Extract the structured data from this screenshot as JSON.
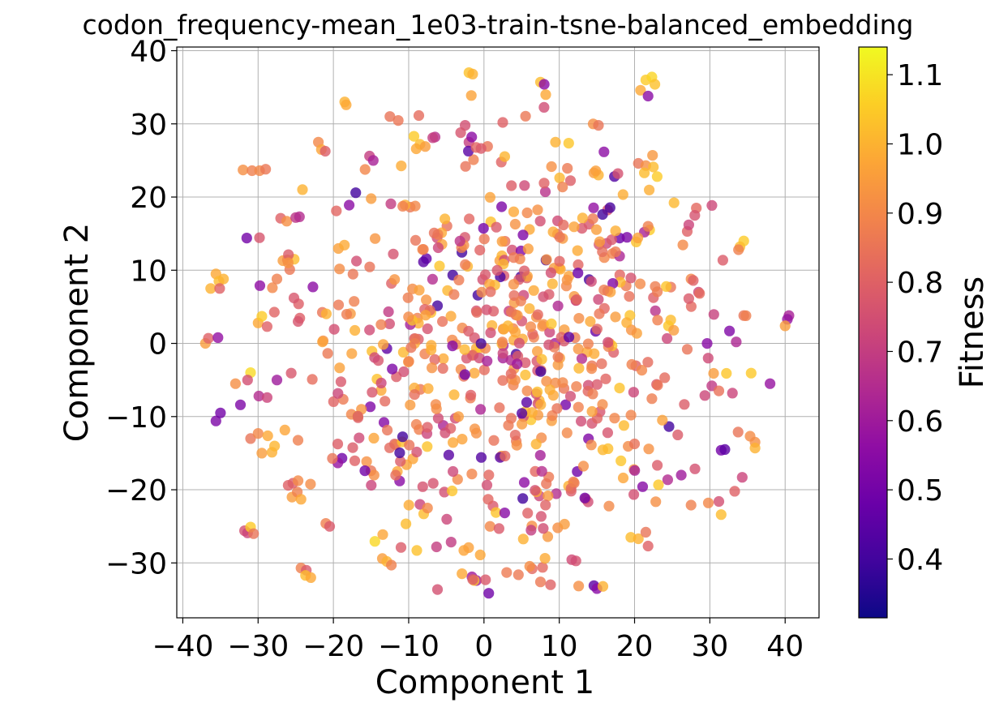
{
  "chart_data": {
    "type": "scatter",
    "title": "codon_frequency-mean_1e03-train-tsne-balanced_embedding",
    "xlabel": "Component 1",
    "ylabel": "Component 2",
    "xlim": [
      -40.8,
      44.5
    ],
    "ylim": [
      -37.5,
      40.5
    ],
    "xticks": [
      -40,
      -30,
      -20,
      -10,
      0,
      10,
      20,
      30,
      40
    ],
    "yticks": [
      -30,
      -20,
      -10,
      0,
      10,
      20,
      30,
      40
    ],
    "grid": true,
    "colormap": "plasma",
    "colorbar": {
      "label": "Fitness",
      "range": [
        0.315,
        1.14
      ],
      "ticks": [
        0.4,
        0.5,
        0.6,
        0.7,
        0.8,
        0.9,
        1.0,
        1.1
      ]
    },
    "seed": 20240611,
    "n_points": 780,
    "points": [
      [
        -2,
        37,
        1.03
      ],
      [
        -1.5,
        36.8,
        1.0
      ],
      [
        7.5,
        35.7,
        1.02
      ],
      [
        8,
        35.4,
        0.55
      ],
      [
        8.2,
        34,
        0.98
      ],
      [
        21.5,
        36,
        1.05
      ],
      [
        22.3,
        36.4,
        1.07
      ],
      [
        22.7,
        35.4,
        1.03
      ],
      [
        20.8,
        34.6,
        0.98
      ],
      [
        21.8,
        33.8,
        0.55
      ],
      [
        -18.5,
        33,
        1.0
      ],
      [
        -18.3,
        32.6,
        0.98
      ],
      [
        -12.5,
        31,
        0.85
      ],
      [
        2.5,
        30.2,
        0.8
      ],
      [
        -2.5,
        29.8,
        0.75
      ],
      [
        -32,
        23.7,
        0.92
      ],
      [
        -30.8,
        23.6,
        0.88
      ],
      [
        -29.8,
        23.6,
        0.9
      ],
      [
        -29,
        23.8,
        0.86
      ],
      [
        -22,
        27.5,
        0.9
      ],
      [
        -21.6,
        26.5,
        0.97
      ],
      [
        -15.2,
        25.6,
        0.7
      ],
      [
        -14.7,
        25,
        0.62
      ],
      [
        -9.3,
        28.3,
        1.05
      ],
      [
        -8.5,
        27.2,
        1.02
      ],
      [
        -9,
        26.6,
        0.98
      ],
      [
        -7.8,
        26.9,
        0.95
      ],
      [
        -6.5,
        28.2,
        0.66
      ],
      [
        -6.8,
        28.1,
        0.7
      ],
      [
        14.5,
        30,
        0.92
      ],
      [
        15.2,
        29.8,
        0.85
      ],
      [
        9.5,
        27.5,
        1.0
      ],
      [
        20.5,
        24.6,
        0.85
      ],
      [
        21.5,
        24.3,
        0.92
      ],
      [
        22.5,
        24.1,
        1.02
      ],
      [
        23,
        22.8,
        1.05
      ],
      [
        21.3,
        23.3,
        1.02
      ],
      [
        14.6,
        23.3,
        0.95
      ],
      [
        15.2,
        23,
        1.0
      ],
      [
        -37,
        0,
        0.95
      ],
      [
        -36.6,
        0.7,
        0.8
      ],
      [
        -36.3,
        7.5,
        1.0
      ],
      [
        -35.6,
        9.5,
        0.98
      ],
      [
        -35.2,
        8.5,
        1.02
      ],
      [
        -34.6,
        8.8,
        1.0
      ],
      [
        -35.1,
        7.5,
        0.8
      ],
      [
        -31.5,
        14.4,
        0.5
      ],
      [
        -27,
        17.1,
        0.8
      ],
      [
        -26.2,
        16.7,
        0.92
      ],
      [
        -25,
        17.2,
        0.68
      ],
      [
        -24.5,
        17.3,
        0.65
      ],
      [
        -26.7,
        11.3,
        0.95
      ],
      [
        -26.1,
        11.4,
        0.9
      ],
      [
        -25.2,
        11.5,
        1.02
      ],
      [
        -25.8,
        10.1,
        0.86
      ],
      [
        -28.1,
        7.6,
        0.9
      ],
      [
        -27.5,
        8.8,
        0.88
      ],
      [
        -30,
        2.8,
        0.98
      ],
      [
        -29.5,
        3.7,
        1.05
      ],
      [
        -28.8,
        2.3,
        0.8
      ],
      [
        -31,
        -4,
        1.08
      ],
      [
        -31.4,
        -5,
        0.75
      ],
      [
        -33,
        -5.5,
        0.92
      ],
      [
        -35.6,
        -10.6,
        0.52
      ],
      [
        -35,
        -9.5,
        0.5
      ],
      [
        -31,
        -13,
        0.85
      ],
      [
        -30,
        -12.3,
        0.9
      ],
      [
        -29.5,
        -15,
        0.95
      ],
      [
        -29.9,
        -7.2,
        0.65
      ],
      [
        -28.8,
        -7.4,
        0.72
      ],
      [
        -27.5,
        -5,
        0.6
      ],
      [
        -31.8,
        -25.6,
        0.75
      ],
      [
        -31.4,
        -25.9,
        0.72
      ],
      [
        -31,
        -25.1,
        1.05
      ],
      [
        -30.6,
        -26,
        0.85
      ],
      [
        -26,
        -19.4,
        0.8
      ],
      [
        -25.5,
        -21,
        0.95
      ],
      [
        -24.8,
        -20.3,
        0.88
      ],
      [
        -24.3,
        -21.3,
        0.98
      ],
      [
        -21,
        -24.6,
        0.88
      ],
      [
        -20.5,
        -25,
        0.78
      ],
      [
        -24.3,
        -30.7,
        0.88
      ],
      [
        -23.6,
        -31,
        0.78
      ],
      [
        -23.7,
        -31.7,
        1.02
      ],
      [
        -23,
        -32,
        0.98
      ],
      [
        -15,
        -17.4,
        0.85
      ],
      [
        -14.6,
        -18,
        0.92
      ],
      [
        -11.5,
        -17.5,
        0.98
      ],
      [
        -11.2,
        -18.8,
        0.55
      ],
      [
        -8.5,
        -22,
        0.72
      ],
      [
        -8,
        -23.3,
        1.02
      ],
      [
        -7.5,
        -22.5,
        0.9
      ],
      [
        -13.5,
        -29.4,
        0.95
      ],
      [
        -12.9,
        -29.8,
        1.0
      ],
      [
        -12.3,
        -30.3,
        0.88
      ],
      [
        -6.3,
        -27.8,
        0.7
      ],
      [
        -1.6,
        -31.9,
        0.6
      ],
      [
        -1,
        -32.4,
        0.6
      ],
      [
        0.2,
        -32.3,
        0.78
      ],
      [
        0.8,
        -25,
        0.9
      ],
      [
        2,
        -25.3,
        0.78
      ],
      [
        5.8,
        -23.2,
        0.8
      ],
      [
        6.4,
        -30.8,
        0.82
      ],
      [
        9.8,
        -25.2,
        0.92
      ],
      [
        10.7,
        -24.7,
        0.95
      ],
      [
        14.6,
        -33.1,
        0.45
      ],
      [
        15,
        -33.5,
        0.55
      ],
      [
        15.8,
        -33.2,
        1.0
      ],
      [
        19.5,
        -26.5,
        1.02
      ],
      [
        20.5,
        -26.7,
        1.0
      ],
      [
        21.5,
        -25.8,
        0.85
      ],
      [
        21.8,
        -27.7,
        0.8
      ],
      [
        26.2,
        -18,
        0.6
      ],
      [
        27.5,
        -22.1,
        0.88
      ],
      [
        29.8,
        -21.8,
        0.9
      ],
      [
        31.2,
        -21.6,
        0.75
      ],
      [
        31.5,
        -23.4,
        1.02
      ],
      [
        33.3,
        -20.2,
        0.8
      ],
      [
        34.3,
        -18.3,
        0.72
      ],
      [
        31.5,
        -14.6,
        0.5
      ],
      [
        32,
        -14.5,
        0.45
      ],
      [
        36,
        -13.5,
        0.92
      ],
      [
        36,
        -14.3,
        1.0
      ],
      [
        38,
        -5.5,
        0.58
      ],
      [
        40.5,
        3.8,
        0.62
      ],
      [
        40.3,
        3.3,
        0.58
      ],
      [
        40,
        2.4,
        0.95
      ],
      [
        34.5,
        14,
        1.05
      ],
      [
        34,
        13.2,
        1.02
      ],
      [
        33.8,
        12.8,
        0.88
      ],
      [
        34.5,
        3.8,
        0.85
      ],
      [
        27.5,
        8.8,
        0.9
      ],
      [
        27.8,
        8.6,
        0.8
      ],
      [
        28.5,
        7,
        0.72
      ],
      [
        27,
        15.3,
        0.8
      ],
      [
        27.2,
        16.2,
        0.72
      ],
      [
        28.2,
        18.5,
        0.82
      ],
      [
        28,
        17.5,
        0.76
      ],
      [
        22,
        15.5,
        1.05
      ],
      [
        21.3,
        15.2,
        0.62
      ],
      [
        21.8,
        16,
        0.88
      ],
      [
        18,
        14.4,
        0.48
      ],
      [
        19,
        14.5,
        0.52
      ],
      [
        24.8,
        3.2,
        1.02
      ],
      [
        24.5,
        2.4,
        1.04
      ],
      [
        25.2,
        1.8,
        0.95
      ],
      [
        27,
        -0.8,
        0.85
      ],
      [
        30.5,
        -4.1,
        0.95
      ],
      [
        32.2,
        -4.1,
        1.04
      ],
      [
        33,
        -6.8,
        0.72
      ]
    ]
  }
}
